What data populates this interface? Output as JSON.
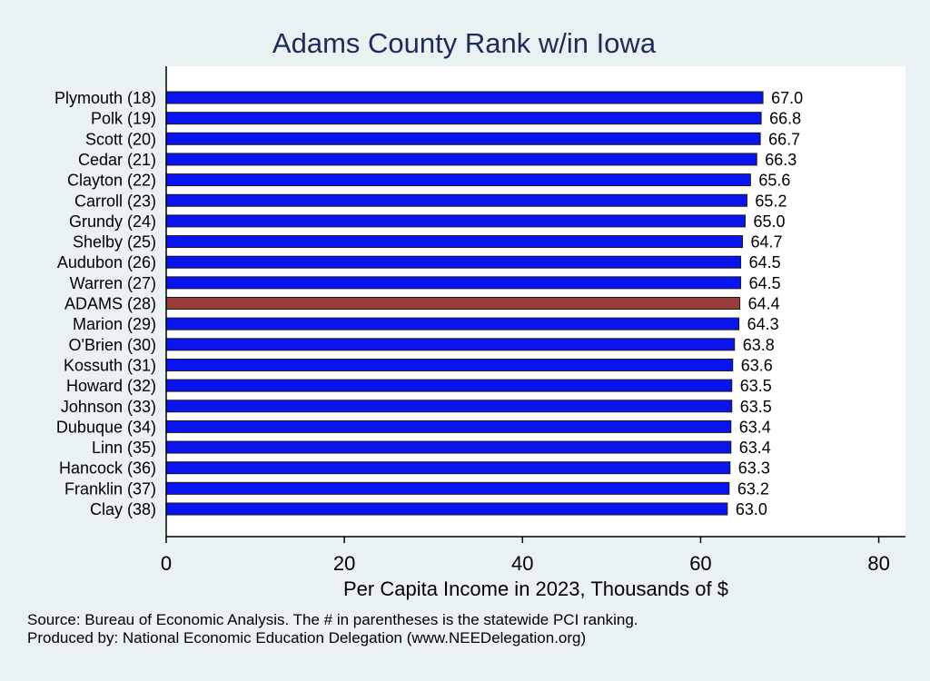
{
  "chart_data": {
    "type": "bar",
    "orientation": "horizontal",
    "title": "Adams County Rank w/in Iowa",
    "xlabel": "Per Capita Income in 2023, Thousands of $",
    "ylabel": "",
    "xlim": [
      0,
      83
    ],
    "x_ticks": [
      0,
      20,
      40,
      60,
      80
    ],
    "grid": false,
    "legend": "none",
    "categories": [
      "Plymouth (18)",
      "Polk (19)",
      "Scott (20)",
      "Cedar (21)",
      "Clayton (22)",
      "Carroll (23)",
      "Grundy (24)",
      "Shelby (25)",
      "Audubon (26)",
      "Warren (27)",
      "ADAMS (28)",
      "Marion (29)",
      "O'Brien (30)",
      "Kossuth (31)",
      "Howard (32)",
      "Johnson (33)",
      "Dubuque (34)",
      "Linn (35)",
      "Hancock (36)",
      "Franklin (37)",
      "Clay (38)"
    ],
    "values": [
      67.0,
      66.8,
      66.7,
      66.3,
      65.6,
      65.2,
      65.0,
      64.7,
      64.5,
      64.5,
      64.4,
      64.3,
      63.8,
      63.6,
      63.5,
      63.5,
      63.4,
      63.4,
      63.3,
      63.2,
      63.0
    ],
    "value_labels": [
      "67.0",
      "66.8",
      "66.7",
      "66.3",
      "65.6",
      "65.2",
      "65.0",
      "64.7",
      "64.5",
      "64.5",
      "64.4",
      "64.3",
      "63.8",
      "63.6",
      "63.5",
      "63.5",
      "63.4",
      "63.4",
      "63.3",
      "63.2",
      "63.0"
    ],
    "highlight_category": "ADAMS (28)",
    "colors": {
      "bar": "#0a14f0",
      "highlight": "#973b3b",
      "bar_outline": "#1a1a1a",
      "plot_bg": "#ffffff",
      "page_bg": "#eaf1f3",
      "title": "#1c2c57"
    },
    "notes": [
      "Source: Bureau of Economic Analysis. The # in parentheses is the statewide PCI ranking.",
      "Produced by: National Economic Education Delegation (www.NEEDelegation.org)"
    ]
  }
}
